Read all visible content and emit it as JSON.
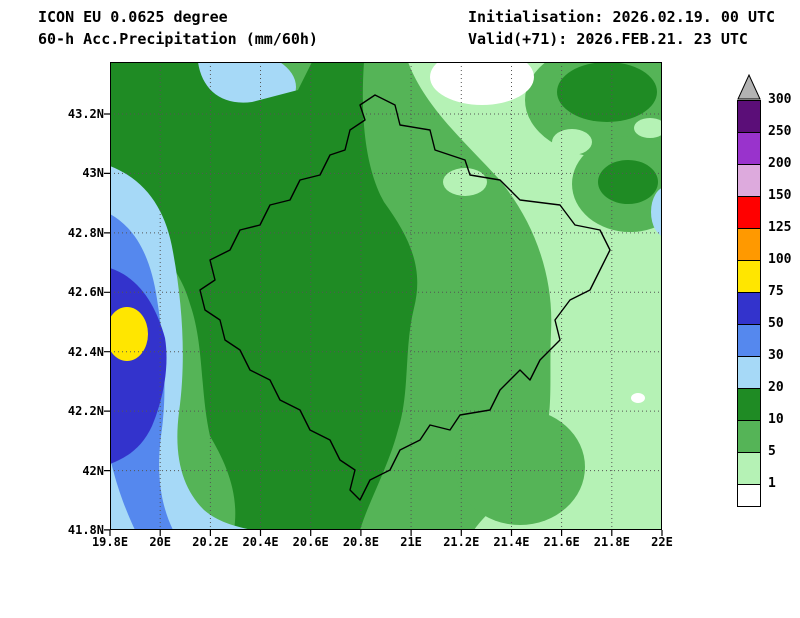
{
  "header": {
    "model_line": "ICON EU 0.0625 degree",
    "product_line": "60-h Acc.Precipitation (mm/60h)",
    "init_line": "Initialisation: 2026.02.19. 00 UTC",
    "valid_line": "Valid(+71): 2026.FEB.21. 23 UTC"
  },
  "map": {
    "lat_ticks": [
      "43.2N",
      "43N",
      "42.8N",
      "42.6N",
      "42.4N",
      "42.2N",
      "42N",
      "41.8N"
    ],
    "lon_ticks": [
      "19.8E",
      "20E",
      "20.2E",
      "20.4E",
      "20.6E",
      "20.8E",
      "21E",
      "21.2E",
      "21.4E",
      "21.6E",
      "21.8E",
      "22E"
    ]
  },
  "colorbar": {
    "levels": [
      300,
      250,
      200,
      150,
      125,
      100,
      75,
      50,
      30,
      20,
      10,
      5,
      1
    ],
    "colors": [
      "#5b0e78",
      "#9933cc",
      "#ddaadd",
      "#ff0000",
      "#ff9900",
      "#ffe600",
      "#3333cc",
      "#5588ee",
      "#a6d9f7",
      "#1f8b24",
      "#55b457",
      "#b5f2b5",
      "#ffffff"
    ],
    "over_color": "#b3b3b3"
  },
  "chart_data": {
    "type": "heatmap",
    "title": "ICON EU 60-h accumulated precipitation (mm/60h), filled contour map",
    "lon_range_deg_e": [
      19.8,
      22.0
    ],
    "lat_range_deg_n": [
      41.8,
      43.37
    ],
    "grid": "dotted graticule every 0.2 degree",
    "legend_position": "right vertical colorbar with overflow triangle",
    "contour_levels_mm": [
      1,
      5,
      10,
      20,
      30,
      50,
      75,
      100,
      125,
      150,
      200,
      250,
      300
    ],
    "max_band_mm": "75-100",
    "max_location": "west edge near 42.4N 19.85E (yellow core)",
    "regions": [
      {
        "band_mm": "75-100",
        "where": "small yellow core at west edge ~42.4N 19.85E"
      },
      {
        "band_mm": "50-75",
        "where": "dark blue patch along west edge 42.1-42.7N"
      },
      {
        "band_mm": "30-50",
        "where": "medium blue band along 19.8-20.0E"
      },
      {
        "band_mm": "20-30",
        "where": "light blue band 19.8-20.1E from ~42.9N to south edge; patches near 43.3N 20.25E and east edge ~42.8N"
      },
      {
        "band_mm": "10-20",
        "where": "broad dark green west-central belt 19.9-20.9E, top-left corner, stripe near 20.95E at top, patches near 21.8E 43.3N and 21.85E 42.95N"
      },
      {
        "band_mm": "5-10",
        "where": "medium green central belt 20.3-21.4E and northeast corner area"
      },
      {
        "band_mm": "1-5",
        "where": "light green over eastern third 21.2-22E and southeast"
      },
      {
        "band_mm": "<1",
        "where": "small pale spots near 43.3N 21.1E and 42.25N 21.9E"
      }
    ],
    "overlay": "black national border outline (Kosovo) centered in domain"
  }
}
